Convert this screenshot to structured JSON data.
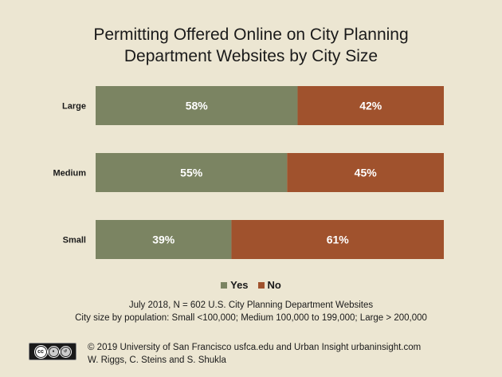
{
  "chart_data": {
    "type": "bar",
    "orientation": "horizontal",
    "stacked": true,
    "title_line1": "Permitting Offered Online on City Planning",
    "title_line2": "Department Websites by City Size",
    "categories": [
      "Large",
      "Medium",
      "Small"
    ],
    "series": [
      {
        "name": "Yes",
        "color": "#7b8462",
        "values": [
          58,
          55,
          39
        ],
        "labels": [
          "58%",
          "55%",
          "39%"
        ]
      },
      {
        "name": "No",
        "color": "#a0522d",
        "values": [
          42,
          45,
          61
        ],
        "labels": [
          "42%",
          "45%",
          "61%"
        ]
      }
    ],
    "xlim": [
      0,
      100
    ],
    "grid": false,
    "legend_position": "bottom"
  },
  "notes": {
    "line1": "July 2018, N = 602 U.S. City Planning Department Websites",
    "line2": "City size by population:  Small <100,000; Medium 100,000 to 199,000; Large > 200,000"
  },
  "footer": {
    "line1": "© 2019 University of San Francisco usfca.edu and Urban Insight urbaninsight.com",
    "line2": "W. Riggs, C. Steins and S. Shukla"
  },
  "license_icon": "creative-commons-by-sa-icon"
}
